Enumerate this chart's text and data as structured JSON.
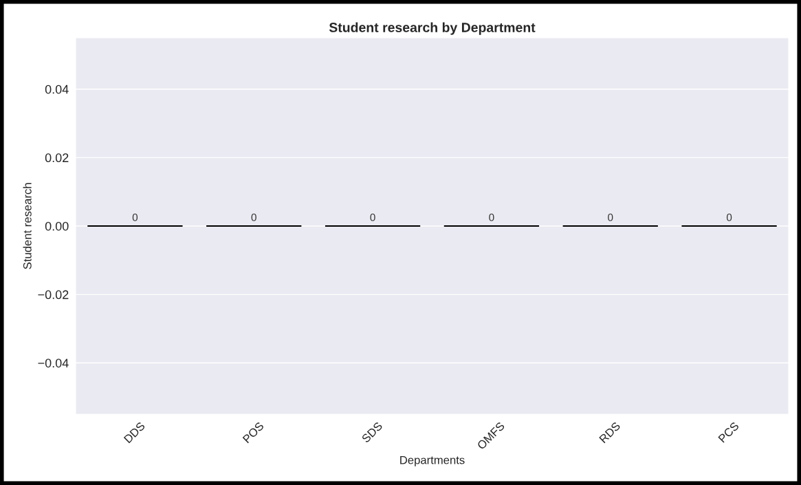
{
  "chart_data": {
    "type": "bar",
    "title": "Student research by Department",
    "xlabel": "Departments",
    "ylabel": "Student research",
    "categories": [
      "DDS",
      "POS",
      "SDS",
      "OMFS",
      "RDS",
      "PCS"
    ],
    "values": [
      0,
      0,
      0,
      0,
      0,
      0
    ],
    "color": "#000000",
    "ylim": [
      -0.055,
      0.055
    ],
    "yticks": [
      {
        "value": -0.04,
        "label": "−0.04"
      },
      {
        "value": -0.02,
        "label": "−0.02"
      },
      {
        "value": 0,
        "label": "0.00"
      },
      {
        "value": 0.02,
        "label": "0.02"
      },
      {
        "value": 0.04,
        "label": "0.04"
      }
    ],
    "grid": "y",
    "data_labels": true
  }
}
